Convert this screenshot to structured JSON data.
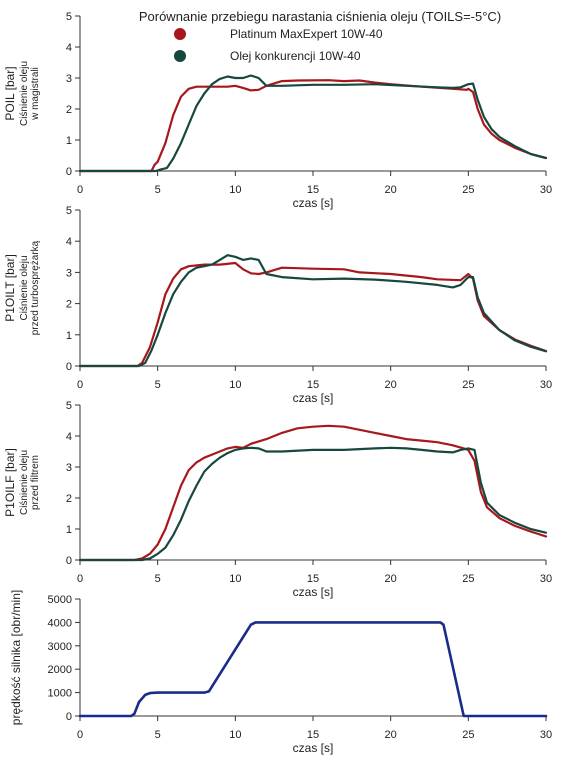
{
  "title": "Porównanie przebiegu narastania ciśnienia oleju (TOILS=-5°C)",
  "legend": [
    {
      "label": "Platinum MaxExpert 10W-40",
      "color": "#a8171b"
    },
    {
      "label": "Olej konkurencji 10W-40",
      "color": "#17473f"
    }
  ],
  "chart_data": [
    {
      "type": "line",
      "ylabel": [
        "POIL [bar]",
        "Ciśnienie oleju",
        "w magistrali"
      ],
      "xlabel": "czas [s]",
      "xlim": [
        0,
        30
      ],
      "ylim": [
        0,
        5
      ],
      "xticks": [
        "0",
        "5",
        "10",
        "15",
        "20",
        "25",
        "30"
      ],
      "yticks": [
        "0",
        "1",
        "2",
        "3",
        "4",
        "5"
      ],
      "series": [
        {
          "name": "Platinum MaxExpert 10W-40",
          "color": "#a8171b",
          "points": [
            [
              0,
              0
            ],
            [
              4.6,
              0
            ],
            [
              4.8,
              0.2
            ],
            [
              5.0,
              0.3
            ],
            [
              5.5,
              0.9
            ],
            [
              6.0,
              1.8
            ],
            [
              6.5,
              2.4
            ],
            [
              7.0,
              2.65
            ],
            [
              7.5,
              2.72
            ],
            [
              8.5,
              2.72
            ],
            [
              9.5,
              2.72
            ],
            [
              10.0,
              2.75
            ],
            [
              10.5,
              2.68
            ],
            [
              11.0,
              2.6
            ],
            [
              11.5,
              2.62
            ],
            [
              12.0,
              2.75
            ],
            [
              13.0,
              2.9
            ],
            [
              14.0,
              2.92
            ],
            [
              16.0,
              2.93
            ],
            [
              17.0,
              2.9
            ],
            [
              18.0,
              2.92
            ],
            [
              19.0,
              2.85
            ],
            [
              20.0,
              2.8
            ],
            [
              22.0,
              2.72
            ],
            [
              24.0,
              2.65
            ],
            [
              24.9,
              2.62
            ],
            [
              25.0,
              2.65
            ],
            [
              25.3,
              2.55
            ],
            [
              25.6,
              2.0
            ],
            [
              26.0,
              1.5
            ],
            [
              26.5,
              1.2
            ],
            [
              27.0,
              1.0
            ],
            [
              28.0,
              0.75
            ],
            [
              29.0,
              0.55
            ],
            [
              30.0,
              0.42
            ]
          ]
        },
        {
          "name": "Olej konkurencji 10W-40",
          "color": "#17473f",
          "points": [
            [
              0,
              0
            ],
            [
              4.9,
              0
            ],
            [
              5.2,
              0.05
            ],
            [
              5.6,
              0.1
            ],
            [
              6.0,
              0.4
            ],
            [
              6.5,
              0.9
            ],
            [
              7.0,
              1.5
            ],
            [
              7.5,
              2.1
            ],
            [
              8.0,
              2.5
            ],
            [
              8.5,
              2.8
            ],
            [
              9.0,
              2.97
            ],
            [
              9.5,
              3.05
            ],
            [
              10.0,
              3.0
            ],
            [
              10.5,
              3.0
            ],
            [
              11.0,
              3.08
            ],
            [
              11.5,
              3.0
            ],
            [
              12.0,
              2.75
            ],
            [
              13.0,
              2.75
            ],
            [
              15.0,
              2.78
            ],
            [
              17.0,
              2.78
            ],
            [
              19.0,
              2.8
            ],
            [
              21.0,
              2.75
            ],
            [
              23.0,
              2.7
            ],
            [
              24.0,
              2.68
            ],
            [
              24.5,
              2.7
            ],
            [
              25.0,
              2.8
            ],
            [
              25.3,
              2.82
            ],
            [
              25.6,
              2.3
            ],
            [
              26.0,
              1.75
            ],
            [
              26.5,
              1.35
            ],
            [
              27.0,
              1.1
            ],
            [
              28.0,
              0.8
            ],
            [
              29.0,
              0.55
            ],
            [
              30.0,
              0.42
            ]
          ]
        }
      ]
    },
    {
      "type": "line",
      "ylabel": [
        "P1OILT [bar]",
        "Ciśnienie oleju",
        "przed turbosprężarką"
      ],
      "xlabel": "czas [s]",
      "xlim": [
        0,
        30
      ],
      "ylim": [
        0,
        5
      ],
      "xticks": [
        "0",
        "5",
        "10",
        "15",
        "20",
        "25",
        "30"
      ],
      "yticks": [
        "0",
        "1",
        "2",
        "3",
        "4",
        "5"
      ],
      "series": [
        {
          "name": "Platinum MaxExpert 10W-40",
          "color": "#a8171b",
          "points": [
            [
              0,
              0
            ],
            [
              3.7,
              0
            ],
            [
              4.0,
              0.1
            ],
            [
              4.5,
              0.6
            ],
            [
              5.0,
              1.4
            ],
            [
              5.5,
              2.3
            ],
            [
              6.0,
              2.8
            ],
            [
              6.5,
              3.1
            ],
            [
              7.0,
              3.2
            ],
            [
              8.0,
              3.25
            ],
            [
              9.0,
              3.25
            ],
            [
              10.0,
              3.3
            ],
            [
              10.5,
              3.1
            ],
            [
              11.0,
              2.97
            ],
            [
              11.5,
              2.95
            ],
            [
              12.0,
              3.0
            ],
            [
              13.0,
              3.15
            ],
            [
              15.0,
              3.12
            ],
            [
              17.0,
              3.1
            ],
            [
              18.0,
              3.0
            ],
            [
              20.0,
              2.95
            ],
            [
              22.0,
              2.85
            ],
            [
              23.0,
              2.78
            ],
            [
              24.5,
              2.75
            ],
            [
              25.0,
              2.95
            ],
            [
              25.3,
              2.8
            ],
            [
              25.6,
              2.1
            ],
            [
              26.0,
              1.6
            ],
            [
              27.0,
              1.15
            ],
            [
              28.0,
              0.85
            ],
            [
              29.0,
              0.65
            ],
            [
              30.0,
              0.48
            ]
          ]
        },
        {
          "name": "Olej konkurencji 10W-40",
          "color": "#17473f",
          "points": [
            [
              0,
              0
            ],
            [
              3.8,
              0
            ],
            [
              4.2,
              0.1
            ],
            [
              4.6,
              0.5
            ],
            [
              5.0,
              1.0
            ],
            [
              5.5,
              1.7
            ],
            [
              6.0,
              2.3
            ],
            [
              6.5,
              2.7
            ],
            [
              7.0,
              3.0
            ],
            [
              7.5,
              3.15
            ],
            [
              8.0,
              3.2
            ],
            [
              8.5,
              3.25
            ],
            [
              9.0,
              3.4
            ],
            [
              9.5,
              3.55
            ],
            [
              10.0,
              3.5
            ],
            [
              10.5,
              3.4
            ],
            [
              11.0,
              3.45
            ],
            [
              11.5,
              3.4
            ],
            [
              12.0,
              2.95
            ],
            [
              13.0,
              2.85
            ],
            [
              15.0,
              2.78
            ],
            [
              17.0,
              2.8
            ],
            [
              19.0,
              2.77
            ],
            [
              21.0,
              2.7
            ],
            [
              23.0,
              2.6
            ],
            [
              24.0,
              2.52
            ],
            [
              24.5,
              2.6
            ],
            [
              25.0,
              2.85
            ],
            [
              25.3,
              2.85
            ],
            [
              25.6,
              2.2
            ],
            [
              26.0,
              1.7
            ],
            [
              27.0,
              1.15
            ],
            [
              28.0,
              0.82
            ],
            [
              29.0,
              0.62
            ],
            [
              30.0,
              0.47
            ]
          ]
        }
      ]
    },
    {
      "type": "line",
      "ylabel": [
        "P1OILF [bar]",
        "Ciśnienie oleju",
        "przed filtrem"
      ],
      "xlabel": "czas [s]",
      "xlim": [
        0,
        30
      ],
      "ylim": [
        0,
        5
      ],
      "xticks": [
        "0",
        "5",
        "10",
        "15",
        "20",
        "25",
        "30"
      ],
      "yticks": [
        "0",
        "1",
        "2",
        "3",
        "4",
        "5"
      ],
      "series": [
        {
          "name": "Platinum MaxExpert 10W-40",
          "color": "#a8171b",
          "points": [
            [
              0,
              0
            ],
            [
              3.5,
              0
            ],
            [
              4.0,
              0.05
            ],
            [
              4.5,
              0.2
            ],
            [
              5.0,
              0.5
            ],
            [
              5.5,
              1.0
            ],
            [
              6.0,
              1.7
            ],
            [
              6.5,
              2.4
            ],
            [
              7.0,
              2.9
            ],
            [
              7.5,
              3.15
            ],
            [
              8.0,
              3.3
            ],
            [
              8.5,
              3.4
            ],
            [
              9.0,
              3.5
            ],
            [
              9.5,
              3.6
            ],
            [
              10.0,
              3.65
            ],
            [
              10.5,
              3.62
            ],
            [
              11.0,
              3.75
            ],
            [
              12.0,
              3.9
            ],
            [
              13.0,
              4.1
            ],
            [
              14.0,
              4.25
            ],
            [
              15.0,
              4.3
            ],
            [
              16.0,
              4.33
            ],
            [
              17.0,
              4.3
            ],
            [
              18.0,
              4.2
            ],
            [
              19.0,
              4.1
            ],
            [
              20.0,
              4.0
            ],
            [
              21.0,
              3.9
            ],
            [
              22.0,
              3.85
            ],
            [
              23.0,
              3.8
            ],
            [
              24.0,
              3.7
            ],
            [
              24.7,
              3.6
            ],
            [
              25.0,
              3.55
            ],
            [
              25.4,
              3.2
            ],
            [
              25.8,
              2.2
            ],
            [
              26.2,
              1.7
            ],
            [
              27.0,
              1.35
            ],
            [
              28.0,
              1.1
            ],
            [
              29.0,
              0.92
            ],
            [
              30.0,
              0.76
            ]
          ]
        },
        {
          "name": "Olej konkurencji 10W-40",
          "color": "#17473f",
          "points": [
            [
              0,
              0
            ],
            [
              4.0,
              0
            ],
            [
              4.5,
              0.05
            ],
            [
              5.0,
              0.2
            ],
            [
              5.5,
              0.4
            ],
            [
              6.0,
              0.8
            ],
            [
              6.5,
              1.3
            ],
            [
              7.0,
              1.9
            ],
            [
              7.5,
              2.4
            ],
            [
              8.0,
              2.85
            ],
            [
              8.5,
              3.1
            ],
            [
              9.0,
              3.3
            ],
            [
              9.5,
              3.45
            ],
            [
              10.0,
              3.55
            ],
            [
              10.5,
              3.6
            ],
            [
              11.0,
              3.62
            ],
            [
              11.5,
              3.6
            ],
            [
              12.0,
              3.5
            ],
            [
              13.0,
              3.5
            ],
            [
              15.0,
              3.55
            ],
            [
              17.0,
              3.55
            ],
            [
              19.0,
              3.6
            ],
            [
              20.0,
              3.62
            ],
            [
              21.0,
              3.6
            ],
            [
              22.0,
              3.55
            ],
            [
              23.0,
              3.5
            ],
            [
              24.0,
              3.47
            ],
            [
              24.5,
              3.55
            ],
            [
              25.0,
              3.6
            ],
            [
              25.4,
              3.55
            ],
            [
              25.8,
              2.5
            ],
            [
              26.2,
              1.85
            ],
            [
              27.0,
              1.45
            ],
            [
              28.0,
              1.2
            ],
            [
              29.0,
              1.0
            ],
            [
              30.0,
              0.88
            ]
          ]
        }
      ]
    },
    {
      "type": "line",
      "ylabel": [
        "prędkość silnika [obr/min]"
      ],
      "xlabel": "czas [s]",
      "xlim": [
        0,
        30
      ],
      "ylim": [
        0,
        5000
      ],
      "xticks": [
        "0",
        "5",
        "10",
        "15",
        "20",
        "25",
        "30"
      ],
      "yticks": [
        "0",
        "1000",
        "2000",
        "3000",
        "4000",
        "5000"
      ],
      "series": [
        {
          "color": "#1b2b8a",
          "points": [
            [
              0,
              0
            ],
            [
              3.3,
              0
            ],
            [
              3.5,
              100
            ],
            [
              3.8,
              600
            ],
            [
              4.2,
              900
            ],
            [
              4.5,
              980
            ],
            [
              5.0,
              1000
            ],
            [
              8.0,
              1000
            ],
            [
              8.3,
              1050
            ],
            [
              11.0,
              3900
            ],
            [
              11.3,
              4000
            ],
            [
              23.2,
              4000
            ],
            [
              23.4,
              3900
            ],
            [
              24.7,
              0
            ],
            [
              30.0,
              0
            ]
          ]
        }
      ]
    }
  ]
}
